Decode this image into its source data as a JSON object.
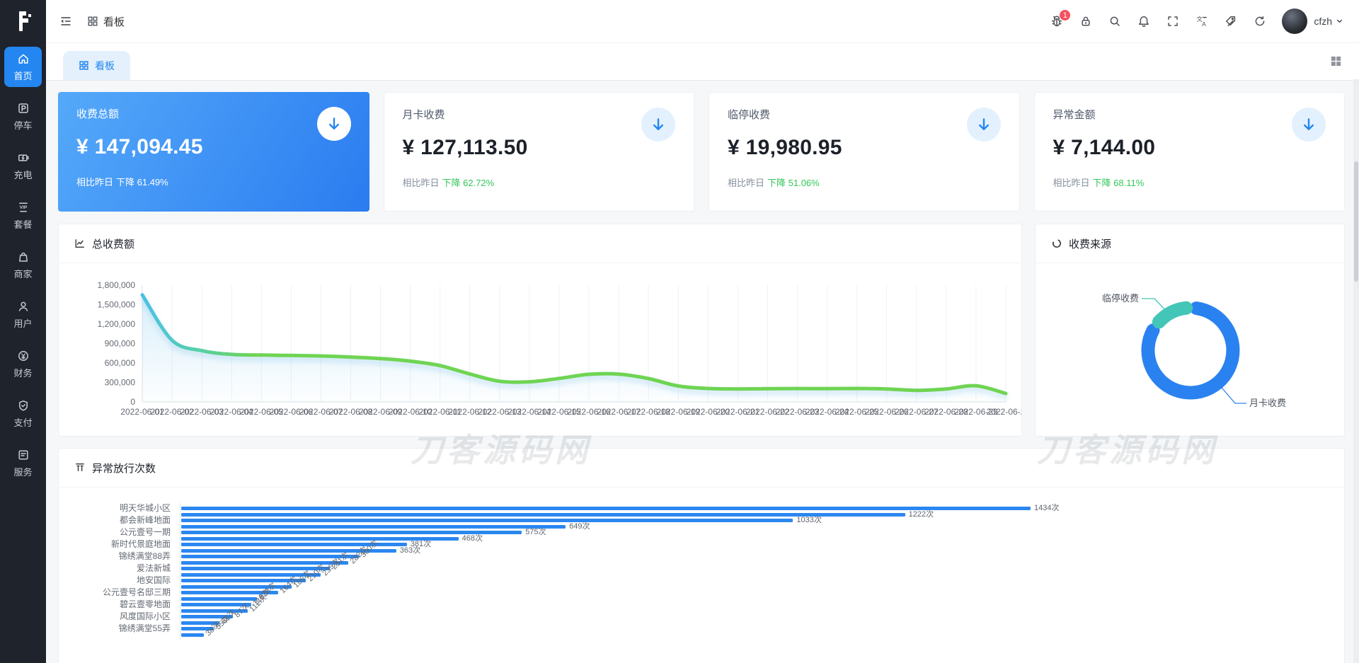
{
  "app": {
    "user": "cfzh"
  },
  "colors": {
    "accent": "#2486f0",
    "green": "#34c759",
    "sidebar_bg": "#1f232b",
    "bar_blue": "#2b87f0",
    "donut_blue": "#2a82f0",
    "donut_teal": "#43c6b8",
    "line_green": "#6fd453",
    "line_blue_start": "#4bc0e6",
    "badge_red": "#f5515f",
    "card_gradient_from": "#55a9f9",
    "card_gradient_to": "#2a7cf0"
  },
  "sidebar": {
    "items": [
      {
        "icon": "home-icon",
        "label": "首页",
        "active": true
      },
      {
        "icon": "parking-icon",
        "label": "停车",
        "active": false
      },
      {
        "icon": "charging-icon",
        "label": "充电",
        "active": false
      },
      {
        "icon": "vip-icon",
        "label": "套餐",
        "active": false
      },
      {
        "icon": "merchant-icon",
        "label": "商家",
        "active": false
      },
      {
        "icon": "user-icon",
        "label": "用户",
        "active": false
      },
      {
        "icon": "finance-icon",
        "label": "财务",
        "active": false
      },
      {
        "icon": "payment-icon",
        "label": "支付",
        "active": false
      },
      {
        "icon": "service-icon",
        "label": "服务",
        "active": false
      }
    ]
  },
  "header": {
    "breadcrumb": "看板",
    "notification_badge": "1",
    "tools": [
      "bug-icon",
      "lock-icon",
      "search-icon",
      "bell-icon",
      "fullscreen-icon",
      "translate-icon",
      "tags-icon",
      "refresh-icon"
    ],
    "username": "cfzh"
  },
  "tabs": {
    "active_label": "看板"
  },
  "stat_cards": [
    {
      "title": "收费总额",
      "amount": "¥ 147,094.45",
      "compare": "相比昨日",
      "trend": "下降 61.49%",
      "highlight": true
    },
    {
      "title": "月卡收费",
      "amount": "¥ 127,113.50",
      "compare": "相比昨日",
      "trend": "下降 62.72%",
      "highlight": false
    },
    {
      "title": "临停收费",
      "amount": "¥ 19,980.95",
      "compare": "相比昨日",
      "trend": "下降 51.06%",
      "highlight": false
    },
    {
      "title": "异常金额",
      "amount": "¥ 7,144.00",
      "compare": "相比昨日",
      "trend": "下降 68.11%",
      "highlight": false
    }
  ],
  "watermark": {
    "text": "刀客源码网"
  },
  "chart_data": [
    {
      "type": "line",
      "title": "总收费额",
      "x": [
        "2022-06-01",
        "2022-06-02",
        "2022-06-03",
        "2022-06-04",
        "2022-06-05",
        "2022-06-06",
        "2022-06-07",
        "2022-06-08",
        "2022-06-09",
        "2022-06-10",
        "2022-06-11",
        "2022-06-12",
        "2022-06-13",
        "2022-06-14",
        "2022-06-15",
        "2022-06-16",
        "2022-06-17",
        "2022-06-18",
        "2022-06-19",
        "2022-06-20",
        "2022-06-21",
        "2022-06-22",
        "2022-06-23",
        "2022-06-24",
        "2022-06-25",
        "2022-06-26",
        "2022-06-27",
        "2022-06-28",
        "2022-06-29",
        "2022-06-2"
      ],
      "values": [
        1650000,
        950000,
        790000,
        732000,
        722000,
        716000,
        708000,
        692000,
        668000,
        628000,
        560000,
        430000,
        318000,
        310000,
        362000,
        425000,
        428000,
        360000,
        245000,
        207000,
        200000,
        203000,
        206000,
        204000,
        207000,
        200000,
        178000,
        200000,
        248000,
        130000
      ],
      "ylim": [
        0,
        1800000
      ],
      "yticks": [
        "0",
        "300,000",
        "600,000",
        "900,000",
        "1,200,000",
        "1,500,000",
        "1,800,000"
      ],
      "grid": true,
      "legend": false
    },
    {
      "type": "pie",
      "title": "收费来源",
      "slices": [
        {
          "name": "月卡收费",
          "value": 127113.5,
          "color": "#2a82f0"
        },
        {
          "name": "临停收费",
          "value": 19980.95,
          "color": "#43c6b8"
        }
      ],
      "legend": "connector-labels"
    },
    {
      "type": "bar",
      "title": "异常放行次数",
      "unit": "次",
      "categories": [
        "明天华城小区",
        "",
        "都会新峰地面",
        "",
        "公元壹号一期",
        "",
        "新时代景庭地面",
        "",
        "锦绣满堂88弄",
        "",
        "爱法新城",
        "",
        "地安国际",
        "",
        "公元壹号名邸三期",
        "",
        "碧云壹零地面",
        "",
        "风度国际小区",
        "",
        "锦绣满堂55弄",
        ""
      ],
      "values": [
        1434,
        1222,
        1033,
        649,
        575,
        468,
        381,
        363,
        300,
        282,
        251,
        235,
        210,
        186,
        164,
        128,
        118,
        112,
        87,
        65,
        55,
        38
      ],
      "xmax": 1434
    }
  ]
}
